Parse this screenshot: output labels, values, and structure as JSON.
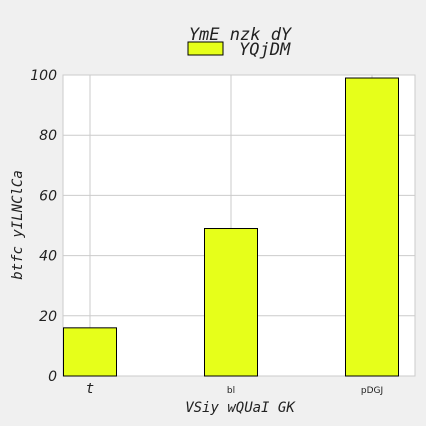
{
  "chart_data": {
    "type": "bar",
    "title": "YmE nzk dY",
    "xlabel": "VSiy wQUaI GK",
    "ylabel": "btfc yILNClCa",
    "categories": [
      "t",
      "bl",
      "pDGJ"
    ],
    "series": [
      {
        "name": "YQjDM",
        "values": [
          16,
          49,
          99
        ]
      }
    ],
    "ylim": [
      0,
      100
    ],
    "yticks": [
      0,
      20,
      40,
      60,
      80,
      100
    ],
    "grid": true,
    "legend": "top-center",
    "colors": {
      "bar": "#e6ff1a",
      "bar_edge": "#000000",
      "plot_bg": "#ffffff",
      "figure_bg": "#f0f0f0",
      "grid": "#cbcbcb",
      "text": "#222222"
    }
  }
}
